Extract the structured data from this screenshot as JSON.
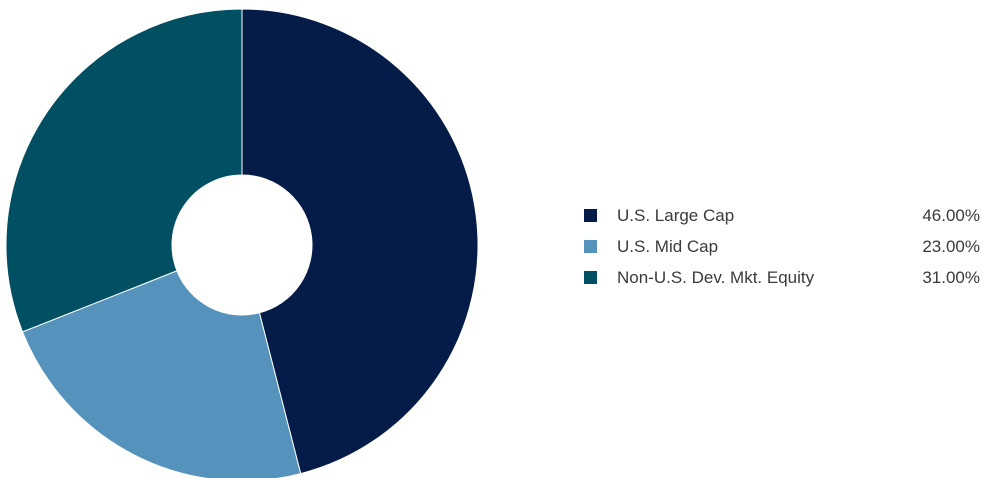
{
  "chart_data": {
    "type": "pie",
    "donut": true,
    "title": "",
    "series": [
      {
        "name": "U.S. Large Cap",
        "value": 46.0,
        "value_label": "46.00%",
        "color": "#061c48"
      },
      {
        "name": "U.S. Mid Cap",
        "value": 23.0,
        "value_label": "23.00%",
        "color": "#5593bd"
      },
      {
        "name": "Non-U.S. Dev. Mkt. Equity",
        "value": 31.0,
        "value_label": "31.00%",
        "color": "#014f62"
      }
    ],
    "start_angle": "12 o'clock",
    "direction": "clockwise",
    "legend_position": "right"
  }
}
